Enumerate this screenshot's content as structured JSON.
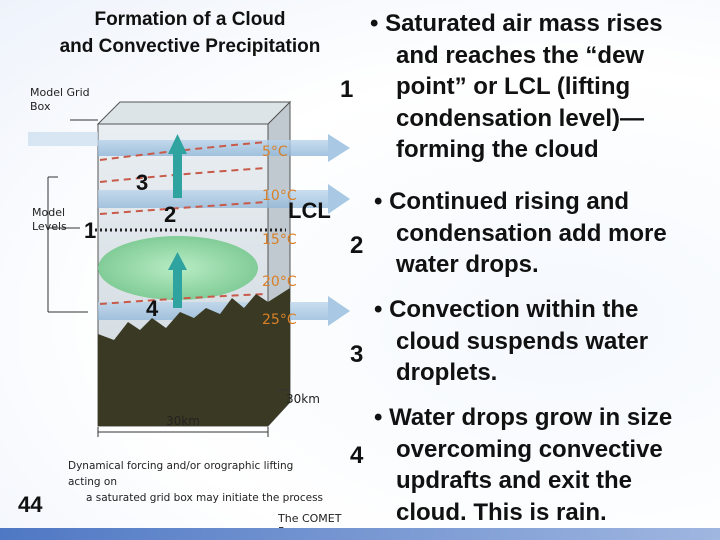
{
  "title": {
    "line1": "Formation of a Cloud",
    "line2": "and Convective Precipitation"
  },
  "slide_number": "44",
  "step_numbers": {
    "n1": "1",
    "n2": "2",
    "n3": "3",
    "n4": "4"
  },
  "bullets": [
    {
      "marker": "1",
      "lines": [
        "• Saturated air mass rises",
        "and reaches the “dew",
        "point” or LCL (lifting",
        "condensation level)—",
        "forming the cloud"
      ]
    },
    {
      "marker": "2",
      "lines": [
        "• Continued rising and",
        "condensation add more",
        "water drops."
      ]
    },
    {
      "marker": "3",
      "lines": [
        "• Convection within the",
        "cloud suspends water",
        "droplets."
      ]
    },
    {
      "marker": "4",
      "lines": [
        "• Water drops grow in size",
        "overcoming convective",
        "updrafts and exit the",
        "cloud.  This is rain."
      ]
    }
  ],
  "diagram": {
    "label_model_grid_box": [
      "Model Grid",
      "Box"
    ],
    "label_model_levels": [
      "Model",
      "Levels"
    ],
    "temps": [
      "5°C",
      "10°C",
      "15°C",
      "20°C",
      "25°C"
    ],
    "lcl_label": "LCL",
    "dim_height": "30km",
    "dim_width": "30km",
    "caption": [
      "Dynamical forcing and/or orographic lifting acting on",
      "a saturated grid box may initiate the process"
    ],
    "credit": "The COMET Program",
    "overlay_1": "1",
    "overlay_2": "2",
    "overlay_3": "3",
    "overlay_4": "4"
  },
  "colors": {
    "arrow_blue": "#9cc8e6",
    "band_blue": "#b8d4ec",
    "cloud_green": "#8fd6a0",
    "terrain": "#3a3a24",
    "updraft_teal": "#2fa3a0",
    "dash_red": "#c85a4a"
  }
}
